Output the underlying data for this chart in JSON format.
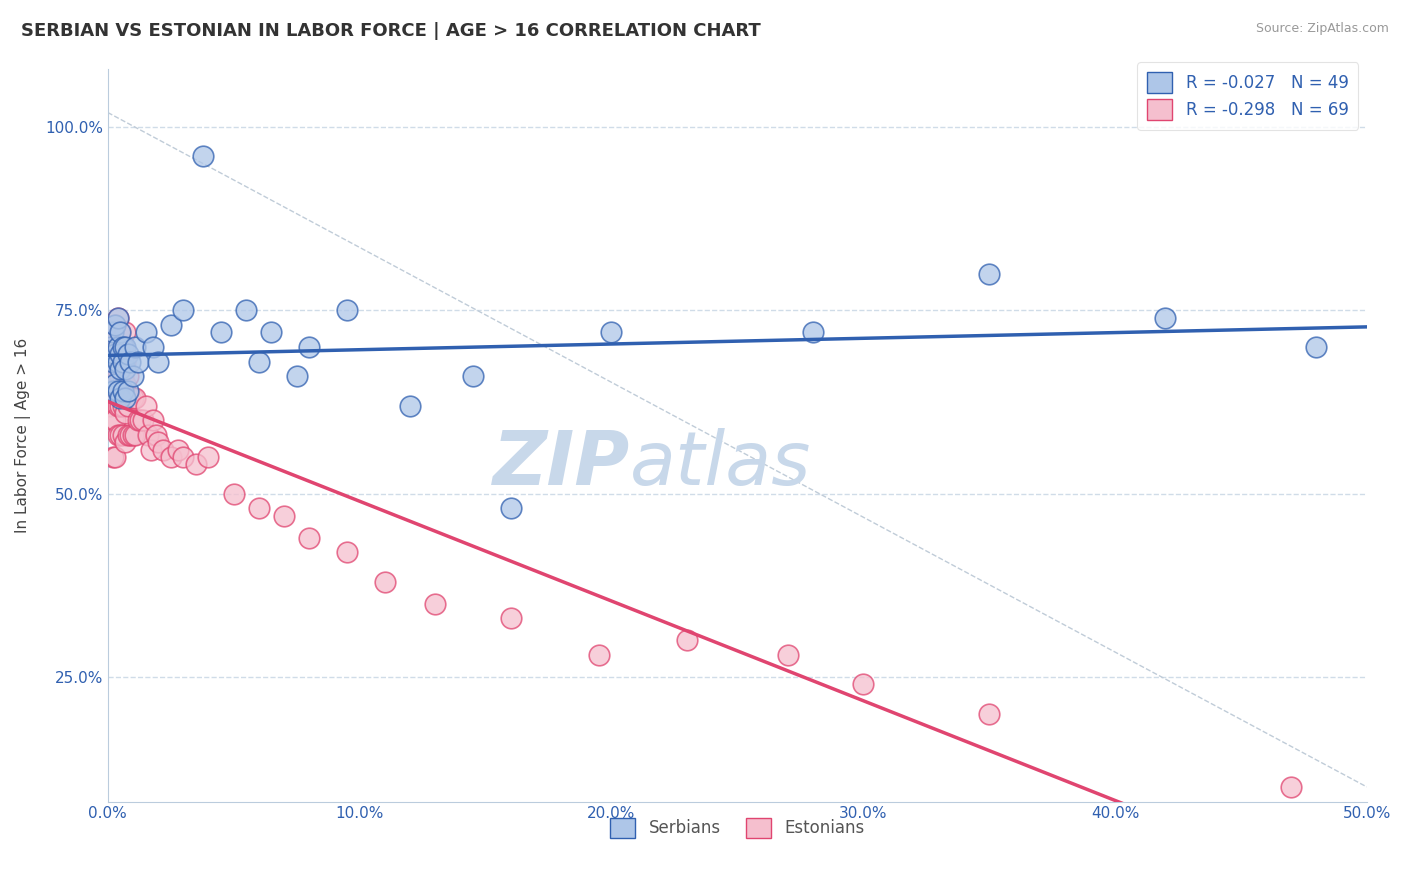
{
  "title": "SERBIAN VS ESTONIAN IN LABOR FORCE | AGE > 16 CORRELATION CHART",
  "source_text": "Source: ZipAtlas.com",
  "ylabel": "In Labor Force | Age > 16",
  "x_tick_labels": [
    "0.0%",
    "10.0%",
    "20.0%",
    "30.0%",
    "40.0%",
    "50.0%"
  ],
  "y_tick_labels": [
    "25.0%",
    "50.0%",
    "75.0%",
    "100.0%"
  ],
  "x_ticks": [
    0.0,
    0.1,
    0.2,
    0.3,
    0.4,
    0.5
  ],
  "y_ticks": [
    0.25,
    0.5,
    0.75,
    1.0
  ],
  "x_range": [
    0.0,
    0.5
  ],
  "y_range": [
    0.08,
    1.08
  ],
  "legend_label_1": "R = -0.027   N = 49",
  "legend_label_2": "R = -0.298   N = 69",
  "legend_bottom_1": "Serbians",
  "legend_bottom_2": "Estonians",
  "color_serbian": "#aec6e8",
  "color_estonian": "#f5bfce",
  "color_line_serbian": "#3060b0",
  "color_line_estonian": "#e04570",
  "watermark_top": "ZIP",
  "watermark_bot": "atlas",
  "watermark_color": "#c8d8ea",
  "background_color": "#ffffff",
  "grid_color": "#d0dce8",
  "serbian_x": [
    0.001,
    0.001,
    0.002,
    0.002,
    0.002,
    0.003,
    0.003,
    0.003,
    0.004,
    0.004,
    0.004,
    0.004,
    0.005,
    0.005,
    0.005,
    0.005,
    0.006,
    0.006,
    0.006,
    0.007,
    0.007,
    0.007,
    0.008,
    0.008,
    0.009,
    0.01,
    0.011,
    0.012,
    0.015,
    0.018,
    0.02,
    0.025,
    0.03,
    0.038,
    0.045,
    0.055,
    0.06,
    0.065,
    0.075,
    0.08,
    0.095,
    0.12,
    0.145,
    0.16,
    0.2,
    0.28,
    0.35,
    0.42,
    0.48
  ],
  "serbian_y": [
    0.66,
    0.7,
    0.64,
    0.68,
    0.72,
    0.65,
    0.69,
    0.73,
    0.64,
    0.68,
    0.7,
    0.74,
    0.63,
    0.67,
    0.69,
    0.72,
    0.64,
    0.68,
    0.7,
    0.63,
    0.67,
    0.7,
    0.64,
    0.69,
    0.68,
    0.66,
    0.7,
    0.68,
    0.72,
    0.7,
    0.68,
    0.73,
    0.75,
    0.96,
    0.72,
    0.75,
    0.68,
    0.72,
    0.66,
    0.7,
    0.75,
    0.62,
    0.66,
    0.48,
    0.72,
    0.72,
    0.8,
    0.74,
    0.7
  ],
  "estonian_x": [
    0.001,
    0.001,
    0.001,
    0.002,
    0.002,
    0.002,
    0.002,
    0.003,
    0.003,
    0.003,
    0.003,
    0.003,
    0.004,
    0.004,
    0.004,
    0.004,
    0.004,
    0.005,
    0.005,
    0.005,
    0.005,
    0.005,
    0.006,
    0.006,
    0.006,
    0.006,
    0.007,
    0.007,
    0.007,
    0.007,
    0.007,
    0.008,
    0.008,
    0.008,
    0.009,
    0.009,
    0.01,
    0.01,
    0.011,
    0.011,
    0.012,
    0.013,
    0.014,
    0.015,
    0.016,
    0.017,
    0.018,
    0.019,
    0.02,
    0.022,
    0.025,
    0.028,
    0.03,
    0.035,
    0.04,
    0.05,
    0.06,
    0.07,
    0.08,
    0.095,
    0.11,
    0.13,
    0.16,
    0.195,
    0.23,
    0.27,
    0.3,
    0.35,
    0.47
  ],
  "estonian_y": [
    0.62,
    0.66,
    0.72,
    0.55,
    0.6,
    0.65,
    0.7,
    0.55,
    0.6,
    0.65,
    0.68,
    0.73,
    0.58,
    0.62,
    0.66,
    0.7,
    0.74,
    0.58,
    0.62,
    0.66,
    0.69,
    0.72,
    0.58,
    0.62,
    0.66,
    0.7,
    0.57,
    0.61,
    0.65,
    0.68,
    0.72,
    0.58,
    0.62,
    0.66,
    0.58,
    0.63,
    0.58,
    0.63,
    0.58,
    0.63,
    0.6,
    0.6,
    0.6,
    0.62,
    0.58,
    0.56,
    0.6,
    0.58,
    0.57,
    0.56,
    0.55,
    0.56,
    0.55,
    0.54,
    0.55,
    0.5,
    0.48,
    0.47,
    0.44,
    0.42,
    0.38,
    0.35,
    0.33,
    0.28,
    0.3,
    0.28,
    0.24,
    0.2,
    0.1
  ],
  "diag_line_x": [
    0.0,
    0.5
  ],
  "diag_line_y": [
    1.02,
    0.1
  ]
}
